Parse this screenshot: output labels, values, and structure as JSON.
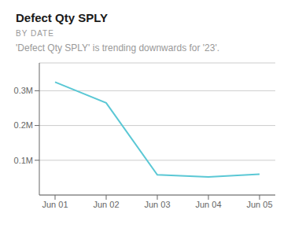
{
  "chart_data": {
    "type": "line",
    "title": "Defect Qty SPLY",
    "subtitle": "BY DATE",
    "annotations": [
      "'Defect Qty SPLY' is trending downwards for '23'."
    ],
    "categories": [
      "Jun 01",
      "Jun 02",
      "Jun 03",
      "Jun 04",
      "Jun 05"
    ],
    "values": [
      0.325,
      0.265,
      0.058,
      0.052,
      0.06
    ],
    "color": "#5BC8D5",
    "ylim": [
      0.0,
      0.38
    ],
    "yticks": [
      {
        "value": 0.1,
        "label": "0.1M"
      },
      {
        "value": 0.2,
        "label": "0.2M"
      },
      {
        "value": 0.3,
        "label": "0.3M"
      }
    ],
    "grid": "y"
  }
}
